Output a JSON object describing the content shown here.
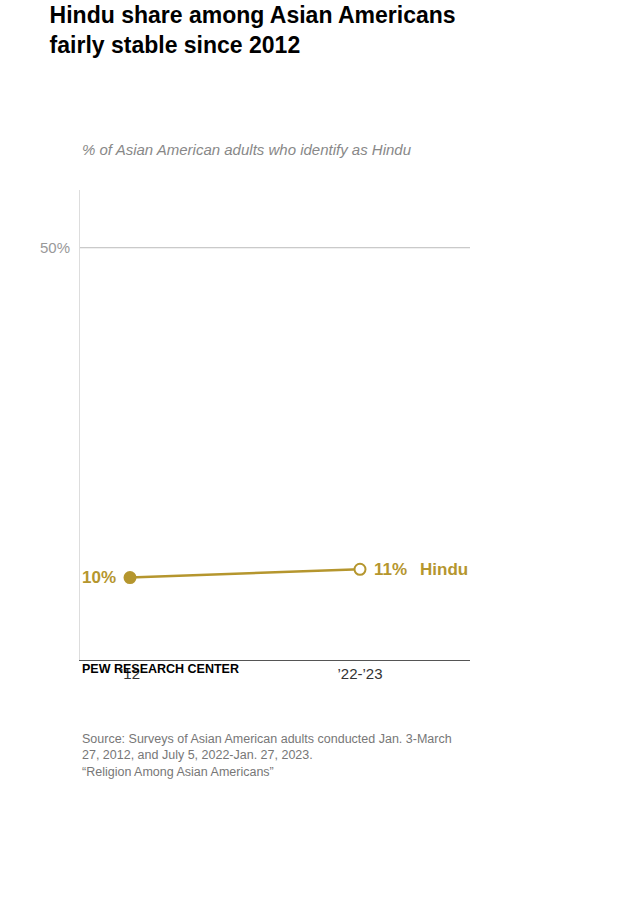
{
  "chart_data": {
    "type": "line",
    "title": "Hindu share among Asian Americans\nfairly stable since 2012",
    "subtitle": "% of Asian American adults who identify as Hindu",
    "source": "Source: Surveys of Asian American adults conducted Jan. 3-March\n27, 2012, and July 5, 2022-Jan. 27, 2023.\n“Religion Among Asian Americans”",
    "footer": "PEW RESEARCH CENTER",
    "categories": [
      "’12",
      "’22-’23"
    ],
    "series": [
      {
        "name": "Hindu",
        "color": "#b5962e",
        "marker": "circle",
        "colors": [
          "#b5962e",
          "#ffffff"
        ],
        "values": [
          10,
          11
        ],
        "value_labels": [
          "10%",
          "11%"
        ]
      }
    ],
    "ylim": [
      0,
      57
    ],
    "yticks": [],
    "tick_labels": "x",
    "data_labels": true,
    "grid": false,
    "reference_line": {
      "value": 50,
      "label": "50%",
      "color": "#bbbbbb"
    }
  }
}
